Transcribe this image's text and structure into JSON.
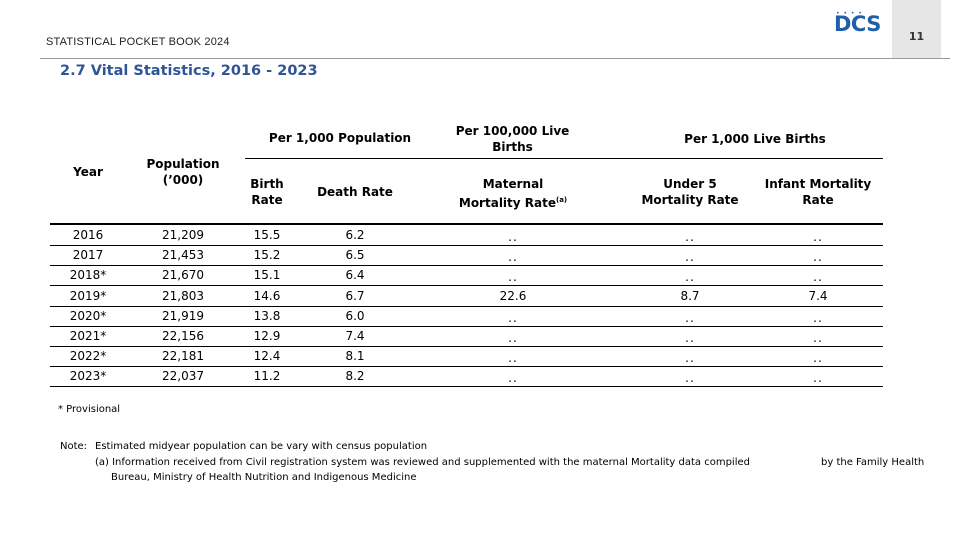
{
  "header": {
    "title": "STATISTICAL POCKET BOOK 2024",
    "logo_text": "DCS",
    "page_number": "11"
  },
  "section_title": "2.7 Vital Statistics, 2016 - 2023",
  "table": {
    "group_headers": {
      "per_1000_population": "Per 1,000  Population",
      "per_100000_live_births": "Per 100,000 Live Births",
      "per_1000_live_births": "Per 1,000 Live Births"
    },
    "columns": {
      "year": "Year",
      "population": "Population (’000)",
      "birth_rate": "Birth Rate",
      "death_rate": "Death  Rate",
      "maternal_mortality": "Maternal Mortality Rate",
      "maternal_mortality_note": "(a)",
      "under5": "Under 5 Mortality Rate",
      "infant": "Infant Mortality Rate"
    },
    "rows": [
      {
        "year": "2016",
        "population": "21,209",
        "birth": "15.5",
        "death": "6.2",
        "maternal": "..",
        "under5": "..",
        "infant": ".."
      },
      {
        "year": "2017",
        "population": "21,453",
        "birth": "15.2",
        "death": "6.5",
        "maternal": "..",
        "under5": "..",
        "infant": ".."
      },
      {
        "year": "2018*",
        "population": "21,670",
        "birth": "15.1",
        "death": "6.4",
        "maternal": "..",
        "under5": "..",
        "infant": ".."
      },
      {
        "year": "2019*",
        "population": "21,803",
        "birth": "14.6",
        "death": "6.7",
        "maternal": "22.6",
        "under5": "8.7",
        "infant": "7.4"
      },
      {
        "year": "2020*",
        "population": "21,919",
        "birth": "13.8",
        "death": "6.0",
        "maternal": "..",
        "under5": "..",
        "infant": ".."
      },
      {
        "year": "2021*",
        "population": "22,156",
        "birth": "12.9",
        "death": "7.4",
        "maternal": "..",
        "under5": "..",
        "infant": ".."
      },
      {
        "year": "2022*",
        "population": "22,181",
        "birth": "12.4",
        "death": "8.1",
        "maternal": "..",
        "under5": "..",
        "infant": ".."
      },
      {
        "year": "2023*",
        "population": "22,037",
        "birth": "11.2",
        "death": "8.2",
        "maternal": "..",
        "under5": "..",
        "infant": ".."
      }
    ]
  },
  "footnote": "* Provisional",
  "notes": {
    "label": "Note:",
    "line1": "Estimated midyear population can be vary with census population",
    "line2a": "(a) Information received from Civil registration system was reviewed and supplemented with the maternal Mortality data compiled",
    "line2b": "by the Family Health",
    "line3": "Bureau, Ministry of Health Nutrition and Indigenous Medicine"
  },
  "colors": {
    "accent_blue": "#2f5597",
    "logo_blue": "#1f5fa8",
    "page_box": "#e6e6e6"
  }
}
